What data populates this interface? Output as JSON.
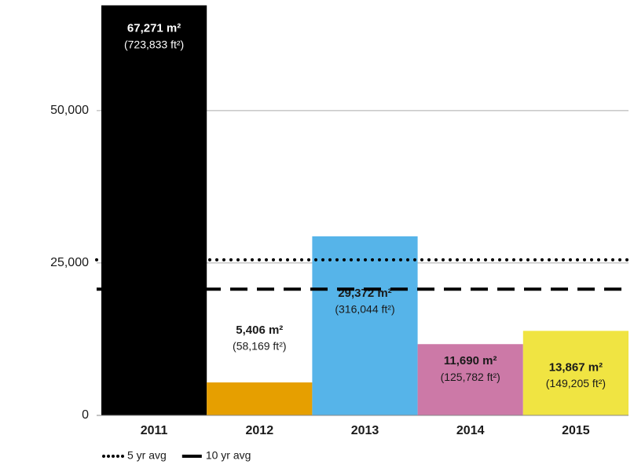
{
  "chart_data": {
    "type": "bar",
    "categories": [
      "2011",
      "2012",
      "2013",
      "2014",
      "2015"
    ],
    "values": [
      67271,
      5406,
      29372,
      11690,
      13867
    ],
    "value_labels": [
      "67,271 m²",
      "5,406 m²",
      "29,372 m²",
      "11,690 m²",
      "13,867 m²"
    ],
    "secondary_labels": [
      "(723,833 ft²)",
      "(58,169 ft²)",
      "(316,044 ft²)",
      "(125,782 ft²)",
      "(149,205 ft²)"
    ],
    "colors": [
      "#000000",
      "#e69f00",
      "#56b4e9",
      "#cc79a7",
      "#f0e442"
    ],
    "ylim": [
      0,
      67500
    ],
    "yticks": [
      0,
      {
        "value": 25000,
        "label": "25,000"
      },
      {
        "value": 50000,
        "label": "50,000"
      }
    ],
    "grid": true,
    "reference_lines": [
      {
        "name": "5 yr avg",
        "value": 25521,
        "style": "dotted"
      },
      {
        "name": "10 yr avg",
        "value": 20700,
        "style": "dashed"
      }
    ],
    "legend": "bottom-left"
  }
}
